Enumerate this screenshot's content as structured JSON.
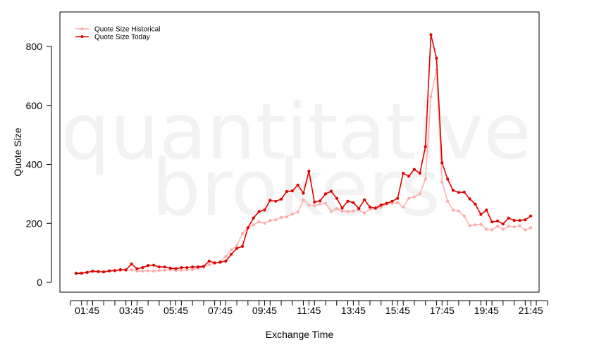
{
  "watermark": {
    "line1": "quantitative",
    "line2": "brokers"
  },
  "colors": {
    "historical": "#ffaaaa",
    "today": "#e00000"
  },
  "chart_data": {
    "type": "line",
    "xlabel": "Exchange Time",
    "ylabel": "Quote Size",
    "x_tick_labels": [
      "01:45",
      "03:45",
      "05:45",
      "07:45",
      "09:45",
      "11:45",
      "13:45",
      "15:45",
      "17:45",
      "19:45",
      "21:45"
    ],
    "y_ticks": [
      0,
      200,
      400,
      600,
      800
    ],
    "ylim": [
      -30,
      920
    ],
    "time_axis": {
      "start": "01:00",
      "end": "22:30",
      "step_minutes": 15,
      "first_point": "01:15"
    },
    "legend_position": "top-left",
    "grid": false,
    "series": [
      {
        "name": "Quote Size Historical",
        "key": "historical",
        "values": [
          32,
          30,
          33,
          36,
          37,
          36,
          38,
          39,
          40,
          41,
          42,
          38,
          38,
          39,
          38,
          40,
          41,
          42,
          40,
          41,
          42,
          43,
          47,
          52,
          60,
          65,
          70,
          88,
          110,
          125,
          165,
          185,
          195,
          205,
          200,
          210,
          212,
          220,
          222,
          232,
          238,
          280,
          262,
          260,
          265,
          268,
          240,
          250,
          242,
          240,
          242,
          245,
          235,
          248,
          250,
          255,
          265,
          268,
          270,
          255,
          285,
          290,
          300,
          350,
          630,
          720,
          340,
          275,
          245,
          242,
          225,
          192,
          195,
          196,
          180,
          178,
          190,
          180,
          190,
          188,
          192,
          178,
          185
        ]
      },
      {
        "name": "Quote Size Today",
        "key": "today",
        "values": [
          30,
          31,
          34,
          38,
          36,
          35,
          39,
          40,
          43,
          42,
          62,
          46,
          50,
          57,
          58,
          52,
          52,
          48,
          46,
          50,
          50,
          52,
          52,
          54,
          72,
          66,
          68,
          72,
          95,
          115,
          122,
          185,
          218,
          240,
          245,
          278,
          275,
          282,
          308,
          310,
          330,
          302,
          377,
          272,
          276,
          300,
          309,
          285,
          252,
          275,
          270,
          250,
          280,
          255,
          252,
          262,
          268,
          275,
          285,
          370,
          360,
          383,
          370,
          460,
          840,
          760,
          405,
          350,
          312,
          305,
          306,
          283,
          265,
          230,
          245,
          205,
          208,
          198,
          218,
          210,
          210,
          212,
          225
        ]
      }
    ]
  }
}
